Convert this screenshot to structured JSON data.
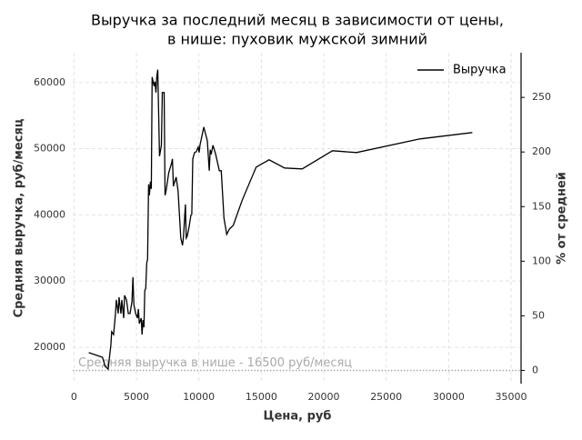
{
  "chart_data": {
    "type": "line",
    "title": [
      "Выручка за последний месяц в зависимости от цены,",
      "в нише: пуховик мужской зимний"
    ],
    "x_label": "Цена, руб",
    "y_label": "Средняя выручка, руб/месяц",
    "y2_label": "% от средней",
    "x": [
      1180,
      2280,
      2500,
      2730,
      2950,
      3020,
      3170,
      3320,
      3390,
      3540,
      3610,
      3760,
      3830,
      3980,
      4050,
      4200,
      4350,
      4490,
      4640,
      4720,
      4790,
      4940,
      5080,
      5160,
      5230,
      5380,
      5450,
      5530,
      5600,
      5670,
      5750,
      5820,
      5890,
      5970,
      6040,
      6120,
      6190,
      6260,
      6410,
      6480,
      6560,
      6630,
      6710,
      6850,
      7000,
      7070,
      7220,
      7290,
      7370,
      7590,
      7810,
      7880,
      7960,
      8180,
      8330,
      8550,
      8690,
      8770,
      8920,
      8990,
      9060,
      9210,
      9360,
      9430,
      9510,
      9650,
      9800,
      9950,
      10020,
      10090,
      10240,
      10390,
      10680,
      10830,
      10910,
      10980,
      11130,
      11350,
      11640,
      11790,
      12010,
      12230,
      12450,
      12750,
      13480,
      14590,
      15620,
      16870,
      18270,
      20700,
      22620,
      27700,
      31900,
      34190
    ],
    "series": [
      {
        "name": "Выручка",
        "color": "#000000",
        "values": [
          19180,
          18490,
          17110,
          16700,
          20280,
          22340,
          21920,
          25090,
          27150,
          25090,
          27560,
          25090,
          27150,
          24400,
          27840,
          27150,
          25090,
          25090,
          26870,
          30580,
          26460,
          25090,
          24400,
          25770,
          23570,
          24400,
          21920,
          24120,
          23020,
          28520,
          28940,
          32650,
          33330,
          44610,
          42960,
          45020,
          43920,
          60830,
          59450,
          60140,
          58490,
          60830,
          61950,
          48870,
          50520,
          58490,
          58490,
          42960,
          43640,
          46390,
          47770,
          48450,
          44330,
          45710,
          43640,
          36500,
          35400,
          36770,
          41580,
          36500,
          36770,
          38150,
          39930,
          40070,
          48450,
          49420,
          49550,
          50240,
          49420,
          50520,
          51890,
          53270,
          51200,
          46670,
          49830,
          49140,
          50520,
          49140,
          46670,
          46670,
          39520,
          37050,
          37870,
          38420,
          42270,
          47220,
          48320,
          47080,
          46940,
          49690,
          49420,
          51480,
          52440,
          null
        ]
      }
    ],
    "reference_line": {
      "value": 16500,
      "label": "Средняя выручка в нише - 16500 руб/месяц"
    },
    "xlim": [
      -100,
      35800
    ],
    "xticks": [
      0,
      5000,
      10000,
      15000,
      20000,
      25000,
      30000,
      35000
    ],
    "ylim": [
      14500,
      64500
    ],
    "yticks": [
      20000,
      30000,
      40000,
      50000,
      60000
    ],
    "y2lim": [
      -12.1,
      290.9
    ],
    "y2ticks": [
      0,
      50,
      100,
      150,
      200,
      250
    ],
    "grid": true,
    "legend": "upper right"
  }
}
